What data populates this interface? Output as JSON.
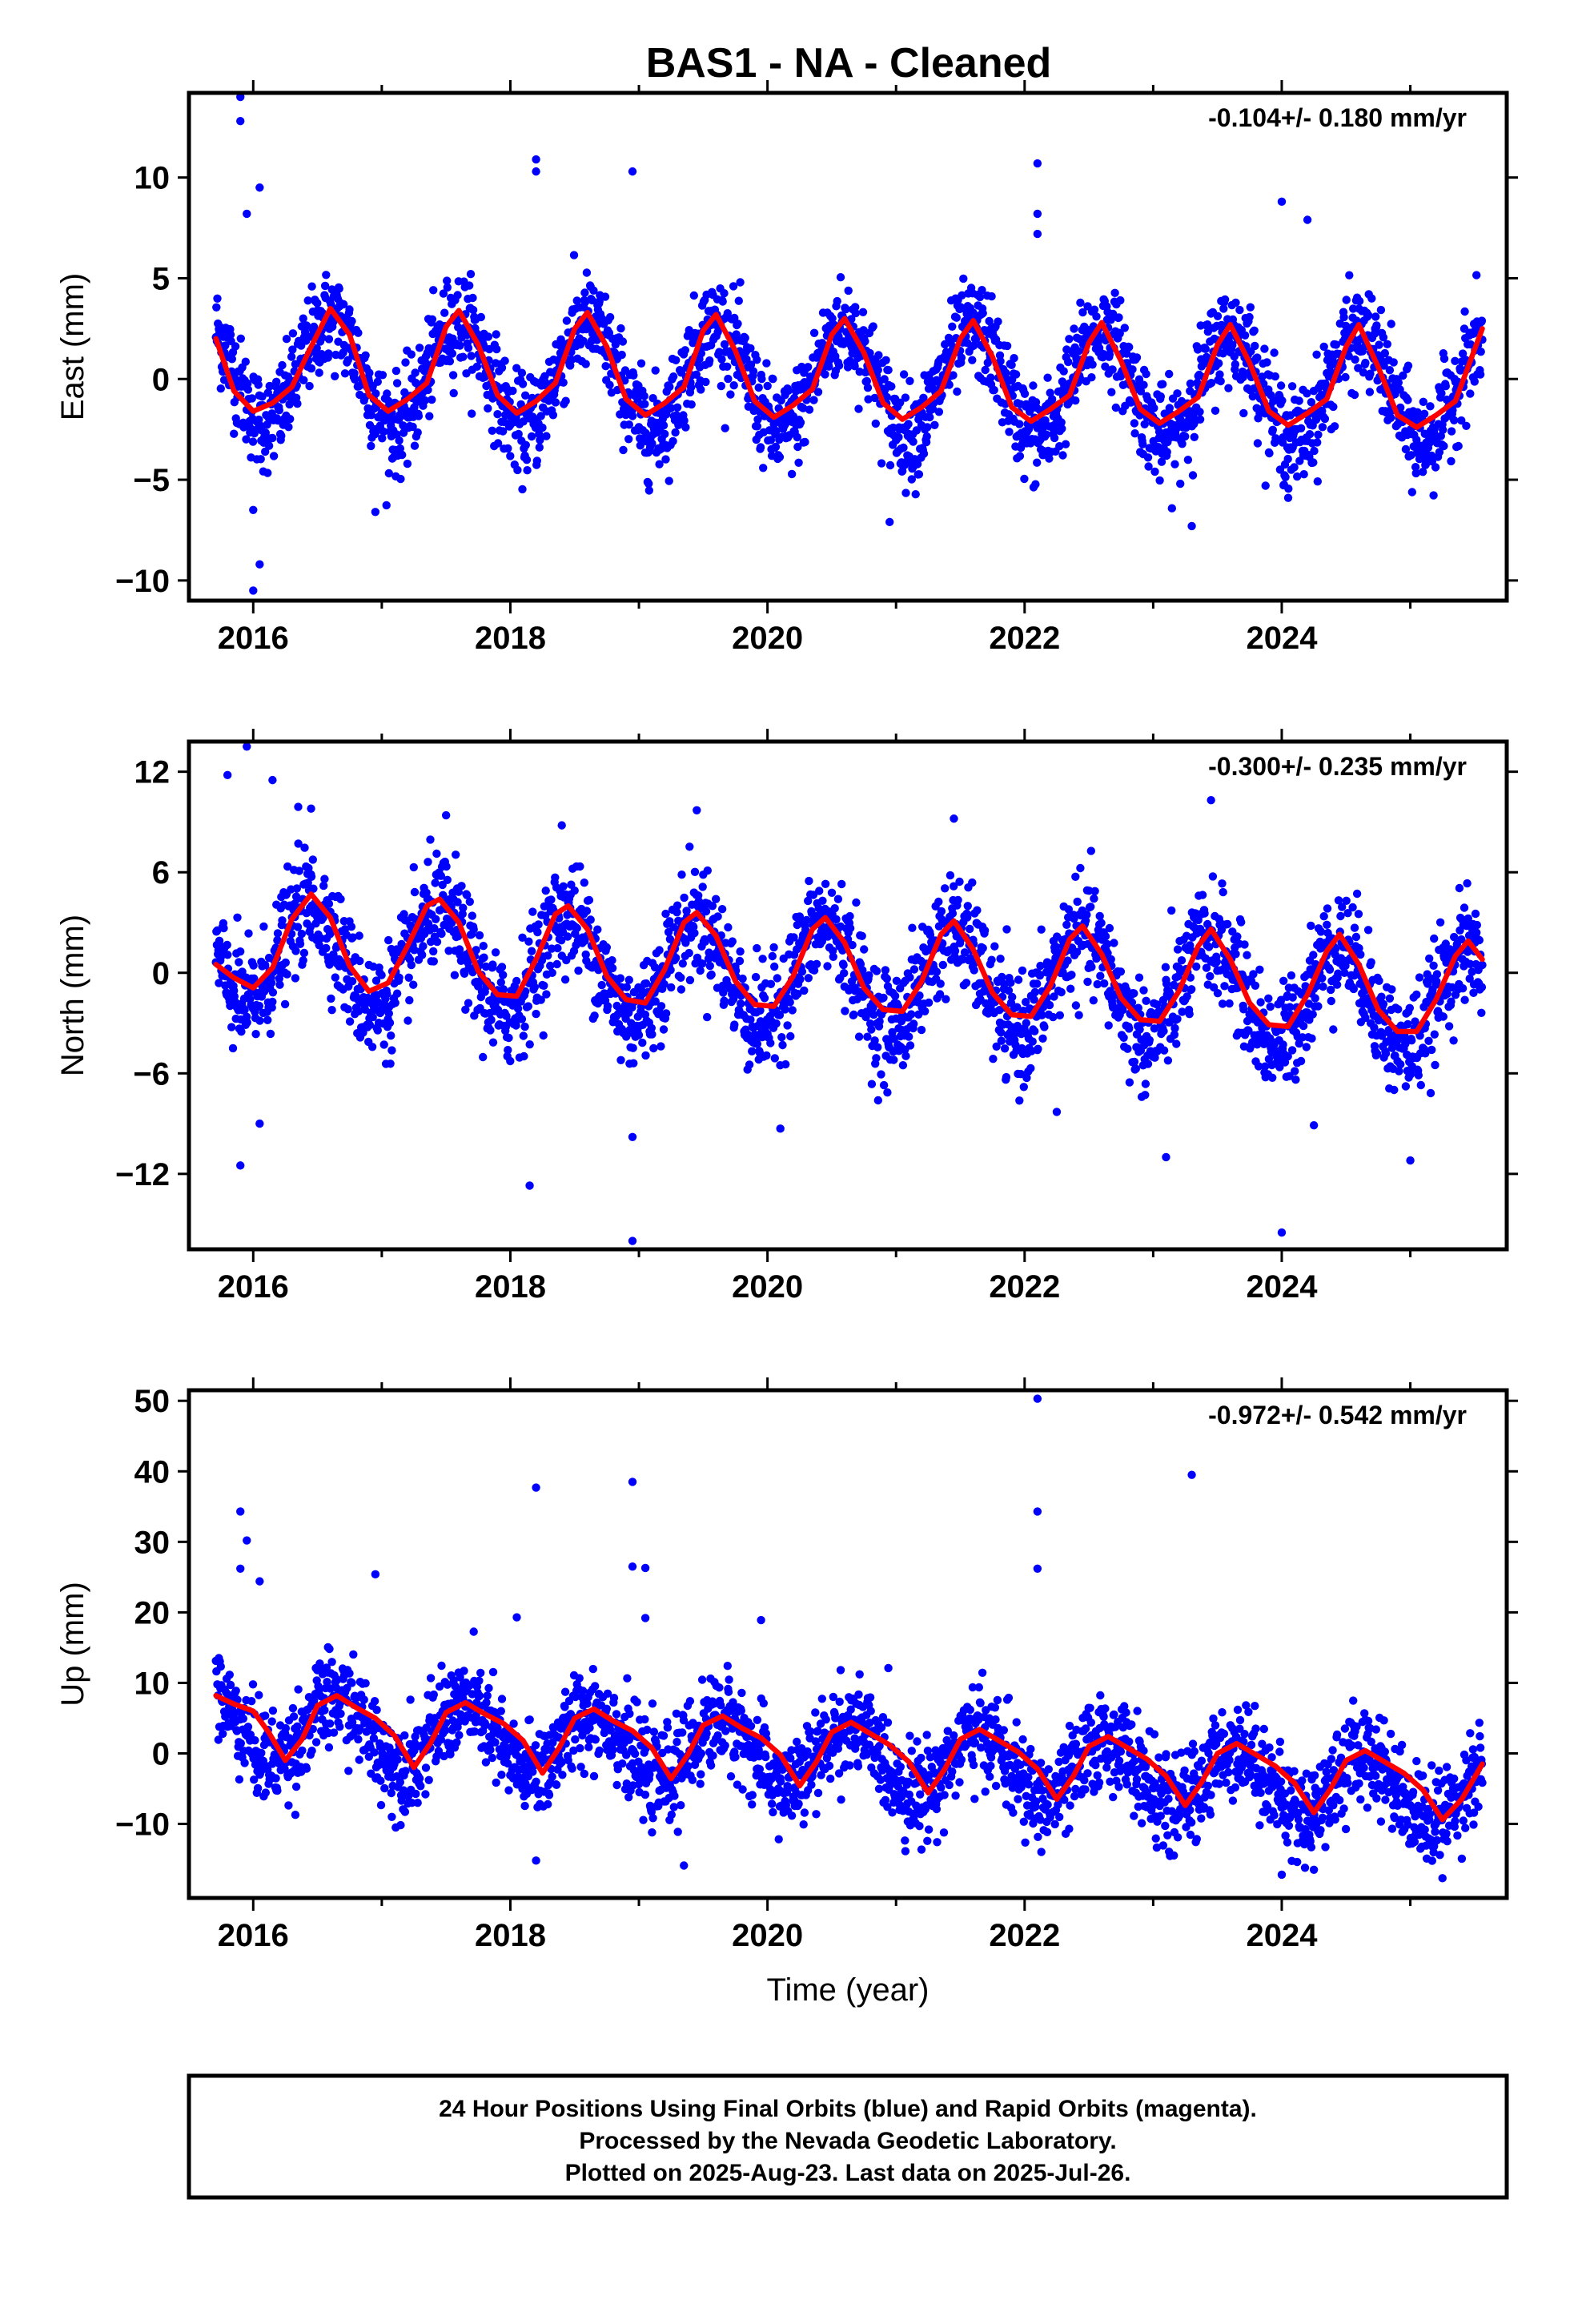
{
  "title": "BAS1  - NA - Cleaned",
  "footer": {
    "line1": "24 Hour Positions Using Final Orbits (blue) and Rapid Orbits (magenta).",
    "line2": "Processed by the Nevada Geodetic Laboratory.",
    "line3": "Plotted on 2025-Aug-23. Last data on 2025-Jul-26."
  },
  "colors": {
    "points": "#0000ff",
    "fit": "#ff0000",
    "axes": "#000000"
  },
  "chart_data": [
    {
      "type": "scatter",
      "component": "East",
      "ylabel": "East (mm)",
      "xlabel": "",
      "rate_label": "-0.104+/- 0.180 mm/yr",
      "xlim": [
        2015.5,
        2025.75
      ],
      "ylim": [
        -11,
        14.2
      ],
      "yticks": [
        -10,
        -5,
        0,
        5,
        10
      ],
      "ytick_labels": [
        "−10",
        "−5",
        "0",
        "5",
        "10"
      ],
      "xticks": [
        2016,
        2018,
        2020,
        2022,
        2024
      ],
      "xtick_labels": [
        "2016",
        "2018",
        "2020",
        "2022",
        "2024"
      ],
      "grid": false,
      "series": [
        {
          "role": "daily positions (final orbits)",
          "color": "#0000ff",
          "x_start": 2015.71,
          "x_end": 2025.56,
          "seasonal_amplitude": 2.6,
          "seasonal_peak_year_fraction": 0.6,
          "scatter_sd": 1.2,
          "rate": -0.104,
          "outliers": [
            [
              2015.9,
              14.0
            ],
            [
              2015.9,
              12.8
            ],
            [
              2015.95,
              8.2
            ],
            [
              2016.05,
              9.5
            ],
            [
              2018.2,
              10.9
            ],
            [
              2018.2,
              10.3
            ],
            [
              2018.95,
              10.3
            ],
            [
              2022.1,
              10.7
            ],
            [
              2022.1,
              8.2
            ],
            [
              2022.1,
              7.2
            ],
            [
              2024.0,
              8.8
            ],
            [
              2024.2,
              7.9
            ],
            [
              2016.0,
              -10.5
            ],
            [
              2016.05,
              -9.2
            ],
            [
              2016.95,
              -6.6
            ],
            [
              2020.95,
              -7.1
            ],
            [
              2023.3,
              -7.3
            ],
            [
              2024.05,
              -5.9
            ],
            [
              2016.0,
              -6.5
            ]
          ]
        },
        {
          "role": "seasonal fit",
          "color": "#ff0000",
          "x": [
            2015.71,
            2015.85,
            2016.0,
            2016.15,
            2016.3,
            2016.45,
            2016.6,
            2016.75,
            2016.9,
            2017.05,
            2017.2,
            2017.35,
            2017.5,
            2017.6,
            2017.75,
            2017.9,
            2018.05,
            2018.2,
            2018.35,
            2018.5,
            2018.6,
            2018.75,
            2018.9,
            2019.05,
            2019.2,
            2019.35,
            2019.5,
            2019.6,
            2019.75,
            2019.9,
            2020.05,
            2020.2,
            2020.35,
            2020.5,
            2020.6,
            2020.75,
            2020.9,
            2021.05,
            2021.2,
            2021.35,
            2021.5,
            2021.6,
            2021.75,
            2021.9,
            2022.05,
            2022.2,
            2022.35,
            2022.5,
            2022.6,
            2022.75,
            2022.9,
            2023.05,
            2023.2,
            2023.35,
            2023.5,
            2023.6,
            2023.75,
            2023.9,
            2024.05,
            2024.2,
            2024.35,
            2024.5,
            2024.6,
            2024.75,
            2024.9,
            2025.05,
            2025.2,
            2025.35,
            2025.56
          ],
          "y": [
            2.0,
            -0.6,
            -1.6,
            -1.2,
            -0.4,
            1.6,
            3.5,
            2.2,
            -0.8,
            -1.6,
            -1.0,
            -0.2,
            2.6,
            3.4,
            1.7,
            -0.8,
            -1.7,
            -1.1,
            -0.2,
            2.5,
            3.3,
            1.6,
            -1.0,
            -1.8,
            -1.2,
            -0.4,
            2.4,
            3.2,
            1.4,
            -1.1,
            -1.9,
            -1.3,
            -0.5,
            2.2,
            3.0,
            1.3,
            -1.2,
            -2.0,
            -1.4,
            -0.6,
            2.0,
            2.9,
            1.1,
            -1.4,
            -2.1,
            -1.5,
            -0.8,
            1.8,
            2.8,
            0.9,
            -1.5,
            -2.2,
            -1.6,
            -0.9,
            1.7,
            2.7,
            0.8,
            -1.6,
            -2.3,
            -1.7,
            -1.0,
            1.6,
            2.7,
            0.6,
            -1.8,
            -2.4,
            -1.8,
            -1.1,
            2.5
          ]
        }
      ]
    },
    {
      "type": "scatter",
      "component": "North",
      "ylabel": "North (mm)",
      "xlabel": "",
      "rate_label": "-0.300+/- 0.235 mm/yr",
      "xlim": [
        2015.5,
        2025.75
      ],
      "ylim": [
        -16.5,
        13.8
      ],
      "yticks": [
        -12,
        -6,
        0,
        6,
        12
      ],
      "ytick_labels": [
        "−12",
        "−6",
        "0",
        "6",
        "12"
      ],
      "xticks": [
        2016,
        2018,
        2020,
        2022,
        2024
      ],
      "xtick_labels": [
        "2016",
        "2018",
        "2020",
        "2022",
        "2024"
      ],
      "grid": false,
      "series": [
        {
          "role": "daily positions (final orbits)",
          "color": "#0000ff",
          "x_start": 2015.71,
          "x_end": 2025.56,
          "seasonal_amplitude": 3.0,
          "seasonal_peak_year_fraction": 0.45,
          "scatter_sd": 1.6,
          "rate": -0.3,
          "outliers": [
            [
              2015.8,
              11.8
            ],
            [
              2015.95,
              13.5
            ],
            [
              2016.15,
              11.5
            ],
            [
              2016.35,
              9.9
            ],
            [
              2016.45,
              9.8
            ],
            [
              2017.5,
              9.4
            ],
            [
              2018.4,
              8.8
            ],
            [
              2019.45,
              9.7
            ],
            [
              2021.45,
              9.2
            ],
            [
              2023.45,
              10.3
            ],
            [
              2018.15,
              -12.7
            ],
            [
              2018.95,
              -16.0
            ],
            [
              2018.95,
              -9.8
            ],
            [
              2015.9,
              -11.5
            ],
            [
              2016.05,
              -9.0
            ],
            [
              2020.1,
              -9.3
            ],
            [
              2022.25,
              -8.3
            ],
            [
              2023.1,
              -11.0
            ],
            [
              2024.0,
              -15.5
            ],
            [
              2024.25,
              -9.1
            ],
            [
              2025.0,
              -11.2
            ]
          ]
        },
        {
          "role": "seasonal fit",
          "color": "#ff0000",
          "x": [
            2015.71,
            2015.85,
            2016.0,
            2016.15,
            2016.3,
            2016.45,
            2016.6,
            2016.75,
            2016.9,
            2017.05,
            2017.2,
            2017.35,
            2017.45,
            2017.6,
            2017.75,
            2017.9,
            2018.05,
            2018.2,
            2018.35,
            2018.45,
            2018.6,
            2018.75,
            2018.9,
            2019.05,
            2019.2,
            2019.35,
            2019.45,
            2019.6,
            2019.75,
            2019.9,
            2020.05,
            2020.2,
            2020.35,
            2020.45,
            2020.6,
            2020.75,
            2020.9,
            2021.05,
            2021.2,
            2021.35,
            2021.45,
            2021.6,
            2021.75,
            2021.9,
            2022.05,
            2022.2,
            2022.35,
            2022.45,
            2022.6,
            2022.75,
            2022.9,
            2023.05,
            2023.2,
            2023.35,
            2023.45,
            2023.6,
            2023.75,
            2023.9,
            2024.05,
            2024.2,
            2024.35,
            2024.45,
            2024.6,
            2024.75,
            2024.9,
            2025.05,
            2025.2,
            2025.35,
            2025.45,
            2025.56
          ],
          "y": [
            0.5,
            -0.3,
            -0.9,
            0.3,
            3.2,
            4.7,
            3.3,
            0.4,
            -1.1,
            -0.6,
            1.6,
            4.0,
            4.4,
            3.0,
            0.1,
            -1.3,
            -1.4,
            0.8,
            3.5,
            4.0,
            2.6,
            -0.2,
            -1.6,
            -1.8,
            0.2,
            3.0,
            3.6,
            2.2,
            -0.5,
            -1.9,
            -2.0,
            -0.2,
            2.6,
            3.3,
            1.8,
            -0.9,
            -2.2,
            -2.3,
            -0.5,
            2.3,
            3.1,
            1.4,
            -1.2,
            -2.5,
            -2.6,
            -0.8,
            2.0,
            2.8,
            1.1,
            -1.5,
            -2.8,
            -2.9,
            -1.1,
            1.6,
            2.6,
            0.8,
            -1.8,
            -3.1,
            -3.2,
            -1.3,
            1.3,
            2.3,
            0.5,
            -2.2,
            -3.5,
            -3.5,
            -1.6,
            1.0,
            1.9,
            0.8
          ]
        }
      ]
    },
    {
      "type": "scatter",
      "component": "Up",
      "ylabel": "Up (mm)",
      "xlabel": "Time (year)",
      "rate_label": "-0.972+/- 0.542 mm/yr",
      "xlim": [
        2015.5,
        2025.75
      ],
      "ylim": [
        -20.5,
        51.5
      ],
      "yticks": [
        -10,
        0,
        10,
        20,
        30,
        40,
        50
      ],
      "ytick_labels": [
        "−10",
        "0",
        "10",
        "20",
        "30",
        "40",
        "50"
      ],
      "xticks": [
        2016,
        2018,
        2020,
        2022,
        2024
      ],
      "xtick_labels": [
        "2016",
        "2018",
        "2020",
        "2022",
        "2024"
      ],
      "grid": false,
      "series": [
        {
          "role": "daily positions (final orbits)",
          "color": "#0000ff",
          "x_start": 2015.71,
          "x_end": 2025.56,
          "seasonal_amplitude": 4.5,
          "seasonal_peak_year_fraction": 0.65,
          "scatter_sd": 3.3,
          "rate": -0.972,
          "outliers": [
            [
              2015.9,
              34.3
            ],
            [
              2015.95,
              30.2
            ],
            [
              2015.9,
              26.2
            ],
            [
              2016.05,
              24.4
            ],
            [
              2016.95,
              25.4
            ],
            [
              2018.2,
              37.7
            ],
            [
              2018.05,
              19.3
            ],
            [
              2018.95,
              38.5
            ],
            [
              2018.95,
              26.5
            ],
            [
              2019.05,
              26.3
            ],
            [
              2019.05,
              19.2
            ],
            [
              2019.95,
              18.9
            ],
            [
              2022.1,
              50.3
            ],
            [
              2022.1,
              34.3
            ],
            [
              2022.1,
              26.2
            ],
            [
              2023.3,
              39.5
            ],
            [
              2018.2,
              -15.2
            ],
            [
              2019.35,
              -15.9
            ],
            [
              2024.0,
              -17.2
            ],
            [
              2025.25,
              -17.7
            ],
            [
              2024.25,
              -16.5
            ]
          ]
        },
        {
          "role": "seasonal fit",
          "color": "#ff0000",
          "x": [
            2015.71,
            2015.85,
            2016.0,
            2016.12,
            2016.25,
            2016.38,
            2016.5,
            2016.65,
            2016.8,
            2016.95,
            2017.1,
            2017.25,
            2017.38,
            2017.5,
            2017.65,
            2017.8,
            2017.95,
            2018.1,
            2018.25,
            2018.38,
            2018.5,
            2018.65,
            2018.8,
            2018.95,
            2019.1,
            2019.25,
            2019.38,
            2019.5,
            2019.65,
            2019.8,
            2019.95,
            2020.1,
            2020.25,
            2020.38,
            2020.5,
            2020.65,
            2020.8,
            2020.95,
            2021.1,
            2021.25,
            2021.38,
            2021.5,
            2021.65,
            2021.8,
            2021.95,
            2022.1,
            2022.25,
            2022.38,
            2022.5,
            2022.65,
            2022.8,
            2022.95,
            2023.1,
            2023.25,
            2023.38,
            2023.5,
            2023.65,
            2023.8,
            2023.95,
            2024.1,
            2024.25,
            2024.38,
            2024.5,
            2024.65,
            2024.8,
            2024.95,
            2025.1,
            2025.25,
            2025.4,
            2025.56
          ],
          "y": [
            8.2,
            7.0,
            6.0,
            3.0,
            -1.0,
            2.0,
            6.8,
            8.2,
            6.5,
            5.0,
            2.5,
            -2.0,
            1.5,
            5.8,
            7.2,
            5.6,
            4.2,
            1.8,
            -2.8,
            0.8,
            5.0,
            6.3,
            4.6,
            3.2,
            0.8,
            -3.6,
            -0.2,
            4.0,
            5.3,
            3.6,
            2.2,
            -0.2,
            -4.6,
            -1.2,
            3.0,
            4.4,
            2.8,
            1.2,
            -1.2,
            -5.6,
            -2.2,
            2.0,
            3.4,
            1.8,
            0.2,
            -2.2,
            -6.5,
            -3.2,
            1.0,
            2.4,
            0.8,
            -0.8,
            -3.2,
            -7.4,
            -4.0,
            0.0,
            1.4,
            -0.2,
            -1.8,
            -4.2,
            -8.4,
            -5.0,
            -1.0,
            0.4,
            -1.2,
            -2.8,
            -5.2,
            -9.4,
            -6.5,
            -1.5
          ]
        }
      ]
    }
  ]
}
